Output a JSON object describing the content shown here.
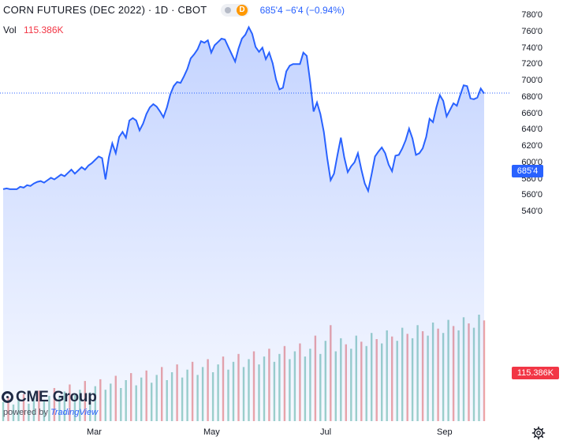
{
  "header": {
    "title": "CORN FUTURES (DEC 2022) · 1D · CBOT",
    "badge_letter": "D",
    "quote": "685'4 −6'4 (−0.94%)",
    "vol_label": "Vol",
    "vol_value": "115.386K"
  },
  "branding": {
    "logo_text": "CME Group",
    "powered_prefix": "powered by",
    "powered_brand": "TradingView"
  },
  "y_axis": {
    "ticks": [
      "780'0",
      "760'0",
      "740'0",
      "720'0",
      "700'0",
      "680'0",
      "660'0",
      "640'0",
      "620'0",
      "600'0",
      "580'0",
      "560'0",
      "540'0"
    ]
  },
  "x_axis": {
    "ticks": [
      "Mar",
      "May",
      "Jul",
      "Sep"
    ]
  },
  "last_price_label": "685'4",
  "last_volume_label": "115.386K",
  "colors": {
    "line": "#2962ff",
    "area_top": "rgba(41,98,255,0.28)",
    "area_bottom": "rgba(41,98,255,0.04)",
    "vol_up": "#9fd3c9",
    "vol_down": "#f0a6a6",
    "price_badge": "#2962ff",
    "volume_badge": "#f23645"
  },
  "chart_data": {
    "type": "area",
    "title": "CORN FUTURES (DEC 2022)",
    "ylim": [
      535,
      785
    ],
    "y_unit": "cents/bushel",
    "last_price": 685.5,
    "price_series": [
      {
        "t": 0,
        "v": 568
      },
      {
        "t": 2,
        "v": 569
      },
      {
        "t": 4,
        "v": 568
      },
      {
        "t": 6,
        "v": 568
      },
      {
        "t": 8,
        "v": 568
      },
      {
        "t": 10,
        "v": 571
      },
      {
        "t": 12,
        "v": 570
      },
      {
        "t": 14,
        "v": 573
      },
      {
        "t": 16,
        "v": 572
      },
      {
        "t": 18,
        "v": 575
      },
      {
        "t": 20,
        "v": 577
      },
      {
        "t": 22,
        "v": 578
      },
      {
        "t": 24,
        "v": 576
      },
      {
        "t": 26,
        "v": 579
      },
      {
        "t": 28,
        "v": 582
      },
      {
        "t": 30,
        "v": 580
      },
      {
        "t": 32,
        "v": 583
      },
      {
        "t": 34,
        "v": 586
      },
      {
        "t": 36,
        "v": 584
      },
      {
        "t": 38,
        "v": 588
      },
      {
        "t": 40,
        "v": 592
      },
      {
        "t": 42,
        "v": 587
      },
      {
        "t": 44,
        "v": 591
      },
      {
        "t": 46,
        "v": 595
      },
      {
        "t": 48,
        "v": 592
      },
      {
        "t": 50,
        "v": 597
      },
      {
        "t": 52,
        "v": 600
      },
      {
        "t": 54,
        "v": 604
      },
      {
        "t": 56,
        "v": 608
      },
      {
        "t": 58,
        "v": 606
      },
      {
        "t": 60,
        "v": 580
      },
      {
        "t": 62,
        "v": 607
      },
      {
        "t": 64,
        "v": 624
      },
      {
        "t": 66,
        "v": 612
      },
      {
        "t": 68,
        "v": 632
      },
      {
        "t": 70,
        "v": 638
      },
      {
        "t": 72,
        "v": 631
      },
      {
        "t": 74,
        "v": 652
      },
      {
        "t": 76,
        "v": 655
      },
      {
        "t": 78,
        "v": 652
      },
      {
        "t": 80,
        "v": 640
      },
      {
        "t": 82,
        "v": 648
      },
      {
        "t": 84,
        "v": 660
      },
      {
        "t": 86,
        "v": 668
      },
      {
        "t": 88,
        "v": 672
      },
      {
        "t": 90,
        "v": 669
      },
      {
        "t": 92,
        "v": 663
      },
      {
        "t": 94,
        "v": 656
      },
      {
        "t": 96,
        "v": 668
      },
      {
        "t": 98,
        "v": 684
      },
      {
        "t": 100,
        "v": 694
      },
      {
        "t": 102,
        "v": 699
      },
      {
        "t": 104,
        "v": 698
      },
      {
        "t": 106,
        "v": 706
      },
      {
        "t": 108,
        "v": 715
      },
      {
        "t": 110,
        "v": 728
      },
      {
        "t": 112,
        "v": 733
      },
      {
        "t": 114,
        "v": 739
      },
      {
        "t": 116,
        "v": 749
      },
      {
        "t": 118,
        "v": 747
      },
      {
        "t": 120,
        "v": 750
      },
      {
        "t": 122,
        "v": 735
      },
      {
        "t": 124,
        "v": 744
      },
      {
        "t": 126,
        "v": 748
      },
      {
        "t": 128,
        "v": 752
      },
      {
        "t": 130,
        "v": 751
      },
      {
        "t": 132,
        "v": 742
      },
      {
        "t": 134,
        "v": 733
      },
      {
        "t": 136,
        "v": 724
      },
      {
        "t": 138,
        "v": 740
      },
      {
        "t": 140,
        "v": 752
      },
      {
        "t": 142,
        "v": 757
      },
      {
        "t": 144,
        "v": 766
      },
      {
        "t": 146,
        "v": 758
      },
      {
        "t": 148,
        "v": 742
      },
      {
        "t": 150,
        "v": 736
      },
      {
        "t": 152,
        "v": 741
      },
      {
        "t": 154,
        "v": 727
      },
      {
        "t": 156,
        "v": 735
      },
      {
        "t": 158,
        "v": 722
      },
      {
        "t": 160,
        "v": 702
      },
      {
        "t": 162,
        "v": 690
      },
      {
        "t": 164,
        "v": 692
      },
      {
        "t": 166,
        "v": 712
      },
      {
        "t": 168,
        "v": 719
      },
      {
        "t": 170,
        "v": 721
      },
      {
        "t": 172,
        "v": 721
      },
      {
        "t": 174,
        "v": 721
      },
      {
        "t": 176,
        "v": 735
      },
      {
        "t": 178,
        "v": 731
      },
      {
        "t": 180,
        "v": 699
      },
      {
        "t": 182,
        "v": 663
      },
      {
        "t": 184,
        "v": 674
      },
      {
        "t": 186,
        "v": 660
      },
      {
        "t": 188,
        "v": 638
      },
      {
        "t": 190,
        "v": 606
      },
      {
        "t": 192,
        "v": 579
      },
      {
        "t": 194,
        "v": 587
      },
      {
        "t": 196,
        "v": 610
      },
      {
        "t": 198,
        "v": 631
      },
      {
        "t": 200,
        "v": 607
      },
      {
        "t": 202,
        "v": 589
      },
      {
        "t": 204,
        "v": 596
      },
      {
        "t": 206,
        "v": 601
      },
      {
        "t": 208,
        "v": 612
      },
      {
        "t": 210,
        "v": 592
      },
      {
        "t": 212,
        "v": 575
      },
      {
        "t": 214,
        "v": 566
      },
      {
        "t": 216,
        "v": 586
      },
      {
        "t": 218,
        "v": 608
      },
      {
        "t": 220,
        "v": 614
      },
      {
        "t": 222,
        "v": 619
      },
      {
        "t": 224,
        "v": 612
      },
      {
        "t": 226,
        "v": 598
      },
      {
        "t": 228,
        "v": 590
      },
      {
        "t": 230,
        "v": 609
      },
      {
        "t": 232,
        "v": 610
      },
      {
        "t": 234,
        "v": 618
      },
      {
        "t": 236,
        "v": 628
      },
      {
        "t": 238,
        "v": 642
      },
      {
        "t": 240,
        "v": 630
      },
      {
        "t": 242,
        "v": 610
      },
      {
        "t": 244,
        "v": 612
      },
      {
        "t": 246,
        "v": 618
      },
      {
        "t": 248,
        "v": 632
      },
      {
        "t": 250,
        "v": 654
      },
      {
        "t": 252,
        "v": 650
      },
      {
        "t": 254,
        "v": 668
      },
      {
        "t": 256,
        "v": 683
      },
      {
        "t": 258,
        "v": 676
      },
      {
        "t": 260,
        "v": 657
      },
      {
        "t": 262,
        "v": 665
      },
      {
        "t": 264,
        "v": 673
      },
      {
        "t": 266,
        "v": 670
      },
      {
        "t": 268,
        "v": 683
      },
      {
        "t": 270,
        "v": 695
      },
      {
        "t": 272,
        "v": 694
      },
      {
        "t": 274,
        "v": 679
      },
      {
        "t": 276,
        "v": 678
      },
      {
        "t": 278,
        "v": 680
      },
      {
        "t": 280,
        "v": 691
      },
      {
        "t": 282,
        "v": 685
      }
    ],
    "volume_series": [
      {
        "t": 0,
        "v": 22,
        "up": true
      },
      {
        "t": 3,
        "v": 28,
        "up": false
      },
      {
        "t": 6,
        "v": 19,
        "up": true
      },
      {
        "t": 9,
        "v": 25,
        "up": true
      },
      {
        "t": 12,
        "v": 31,
        "up": false
      },
      {
        "t": 15,
        "v": 20,
        "up": true
      },
      {
        "t": 18,
        "v": 27,
        "up": true
      },
      {
        "t": 21,
        "v": 35,
        "up": false
      },
      {
        "t": 24,
        "v": 24,
        "up": true
      },
      {
        "t": 27,
        "v": 29,
        "up": true
      },
      {
        "t": 30,
        "v": 38,
        "up": false
      },
      {
        "t": 33,
        "v": 27,
        "up": true
      },
      {
        "t": 36,
        "v": 34,
        "up": true
      },
      {
        "t": 39,
        "v": 42,
        "up": false
      },
      {
        "t": 42,
        "v": 30,
        "up": true
      },
      {
        "t": 45,
        "v": 36,
        "up": true
      },
      {
        "t": 48,
        "v": 46,
        "up": false
      },
      {
        "t": 51,
        "v": 33,
        "up": true
      },
      {
        "t": 54,
        "v": 40,
        "up": true
      },
      {
        "t": 57,
        "v": 48,
        "up": false
      },
      {
        "t": 60,
        "v": 36,
        "up": true
      },
      {
        "t": 63,
        "v": 43,
        "up": true
      },
      {
        "t": 66,
        "v": 52,
        "up": false
      },
      {
        "t": 69,
        "v": 38,
        "up": true
      },
      {
        "t": 72,
        "v": 47,
        "up": true
      },
      {
        "t": 75,
        "v": 55,
        "up": false
      },
      {
        "t": 78,
        "v": 41,
        "up": true
      },
      {
        "t": 81,
        "v": 50,
        "up": true
      },
      {
        "t": 84,
        "v": 58,
        "up": false
      },
      {
        "t": 87,
        "v": 44,
        "up": true
      },
      {
        "t": 90,
        "v": 53,
        "up": true
      },
      {
        "t": 93,
        "v": 62,
        "up": false
      },
      {
        "t": 96,
        "v": 47,
        "up": true
      },
      {
        "t": 99,
        "v": 56,
        "up": true
      },
      {
        "t": 102,
        "v": 65,
        "up": false
      },
      {
        "t": 105,
        "v": 50,
        "up": true
      },
      {
        "t": 108,
        "v": 59,
        "up": true
      },
      {
        "t": 111,
        "v": 68,
        "up": false
      },
      {
        "t": 114,
        "v": 53,
        "up": true
      },
      {
        "t": 117,
        "v": 62,
        "up": true
      },
      {
        "t": 120,
        "v": 71,
        "up": false
      },
      {
        "t": 123,
        "v": 56,
        "up": true
      },
      {
        "t": 126,
        "v": 65,
        "up": true
      },
      {
        "t": 129,
        "v": 74,
        "up": false
      },
      {
        "t": 132,
        "v": 59,
        "up": true
      },
      {
        "t": 135,
        "v": 68,
        "up": true
      },
      {
        "t": 138,
        "v": 77,
        "up": false
      },
      {
        "t": 141,
        "v": 62,
        "up": true
      },
      {
        "t": 144,
        "v": 71,
        "up": true
      },
      {
        "t": 147,
        "v": 80,
        "up": false
      },
      {
        "t": 150,
        "v": 65,
        "up": true
      },
      {
        "t": 153,
        "v": 74,
        "up": true
      },
      {
        "t": 156,
        "v": 83,
        "up": false
      },
      {
        "t": 159,
        "v": 68,
        "up": true
      },
      {
        "t": 162,
        "v": 77,
        "up": true
      },
      {
        "t": 165,
        "v": 86,
        "up": false
      },
      {
        "t": 168,
        "v": 71,
        "up": true
      },
      {
        "t": 171,
        "v": 80,
        "up": true
      },
      {
        "t": 174,
        "v": 89,
        "up": false
      },
      {
        "t": 177,
        "v": 74,
        "up": true
      },
      {
        "t": 180,
        "v": 83,
        "up": true
      },
      {
        "t": 183,
        "v": 98,
        "up": false
      },
      {
        "t": 186,
        "v": 77,
        "up": true
      },
      {
        "t": 189,
        "v": 92,
        "up": true
      },
      {
        "t": 192,
        "v": 110,
        "up": false
      },
      {
        "t": 195,
        "v": 80,
        "up": true
      },
      {
        "t": 198,
        "v": 95,
        "up": true
      },
      {
        "t": 201,
        "v": 88,
        "up": false
      },
      {
        "t": 204,
        "v": 83,
        "up": true
      },
      {
        "t": 207,
        "v": 98,
        "up": true
      },
      {
        "t": 210,
        "v": 91,
        "up": false
      },
      {
        "t": 213,
        "v": 86,
        "up": true
      },
      {
        "t": 216,
        "v": 101,
        "up": true
      },
      {
        "t": 219,
        "v": 94,
        "up": false
      },
      {
        "t": 222,
        "v": 89,
        "up": true
      },
      {
        "t": 225,
        "v": 104,
        "up": true
      },
      {
        "t": 228,
        "v": 97,
        "up": false
      },
      {
        "t": 231,
        "v": 92,
        "up": true
      },
      {
        "t": 234,
        "v": 107,
        "up": true
      },
      {
        "t": 237,
        "v": 100,
        "up": false
      },
      {
        "t": 240,
        "v": 95,
        "up": true
      },
      {
        "t": 243,
        "v": 110,
        "up": true
      },
      {
        "t": 246,
        "v": 103,
        "up": false
      },
      {
        "t": 249,
        "v": 98,
        "up": true
      },
      {
        "t": 252,
        "v": 113,
        "up": true
      },
      {
        "t": 255,
        "v": 106,
        "up": false
      },
      {
        "t": 258,
        "v": 101,
        "up": true
      },
      {
        "t": 261,
        "v": 116,
        "up": true
      },
      {
        "t": 264,
        "v": 109,
        "up": false
      },
      {
        "t": 267,
        "v": 104,
        "up": true
      },
      {
        "t": 270,
        "v": 119,
        "up": true
      },
      {
        "t": 273,
        "v": 112,
        "up": false
      },
      {
        "t": 276,
        "v": 107,
        "up": true
      },
      {
        "t": 279,
        "v": 122,
        "up": true
      },
      {
        "t": 282,
        "v": 115.386,
        "up": false
      }
    ],
    "grid": false,
    "legend": "none"
  }
}
